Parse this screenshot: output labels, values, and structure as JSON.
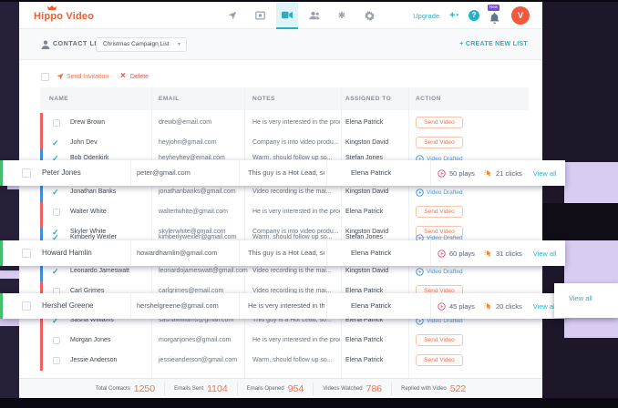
{
  "header": {
    "logo_text": "Hippo Video",
    "nav_icons": [
      "send-icon",
      "display-icon",
      "video-camera-icon",
      "contacts-icon",
      "integrations-icon",
      "settings-icon"
    ],
    "active_nav": "video-camera-icon",
    "upgrade_label": "Upgrade",
    "plus_label": "+",
    "help_glyph": "?",
    "bell_badge": "New",
    "avatar_initial": "V"
  },
  "subheader": {
    "contact_list_label": "CONTACT LIST",
    "selected_list": "Christmas Campaign List",
    "create_new_list_label": "+ CREATE NEW LIST"
  },
  "toolbar": {
    "send_invitation_label": "Send Invitation",
    "delete_label": "Delete"
  },
  "table": {
    "columns": [
      "NAME",
      "EMAIL",
      "NOTES",
      "ASSIGNED TO",
      "ACTION"
    ],
    "action_labels": {
      "send": "Send Video",
      "drafted": "Video Drafted"
    },
    "rows": [
      {
        "kind": "normal",
        "name": "Drew Brown",
        "email": "drewb@email.com",
        "notes": "He is very interested in the prod...",
        "assigned": "Elena Patrick",
        "action": "send",
        "checked": false,
        "accent": "red"
      },
      {
        "kind": "normal",
        "name": "John Dev",
        "email": "heyjohn@gmail.com",
        "notes": "Company is into video produ...",
        "assigned": "Kingston David",
        "action": "send",
        "checked": true,
        "accent": "red"
      },
      {
        "kind": "normal",
        "name": "Bob Odenkirk",
        "email": "heyheyhey@email.com",
        "notes": "Warm. should follow up so...",
        "assigned": "Stefan Jones",
        "action": "drafted",
        "checked": true,
        "accent": "blue"
      },
      {
        "kind": "overlay",
        "name": "Peter Jones",
        "email": "peter@gmail.com",
        "notes": "This guy is a Hot Lead, so...",
        "assigned": "Elena Patrick",
        "checked": false,
        "accent": "green",
        "plays": "50 plays",
        "clicks": "21 clicks",
        "view_all": "View all"
      },
      {
        "kind": "normal",
        "name": "Jonathan Banks",
        "email": "jonathanbanks@gmail.com",
        "notes": "Video recording is the mai...",
        "assigned": "Kingston David",
        "action": "drafted",
        "checked": true,
        "accent": "blue"
      },
      {
        "kind": "normal",
        "name": "Walter White",
        "email": "waltertwhite@gmail.com",
        "notes": "He is very interested in the prod...",
        "assigned": "Elena Patrick",
        "action": "send",
        "checked": false,
        "accent": "red"
      },
      {
        "kind": "normal",
        "name": "Skyler White",
        "email": "skylerwhite@gmail.com",
        "notes": "Company is into video produ...",
        "assigned": "Kingston David",
        "action": "send",
        "checked": true,
        "accent": "red"
      },
      {
        "kind": "normal",
        "name": "Kimberly Wexler",
        "email": "kimberlywexler@gmail.com",
        "notes": "Warm. should follow up so...",
        "assigned": "Stefan Jones",
        "action": "drafted",
        "checked": true,
        "accent": "blue"
      },
      {
        "kind": "overlay",
        "name": "Howard Hamlin",
        "email": "howardhamlin@gmail.com",
        "notes": "This guy is a Hot Lead, so...",
        "assigned": "Elena Patrick",
        "checked": false,
        "accent": "green",
        "plays": "60 plays",
        "clicks": "31 clicks",
        "view_all": "View all"
      },
      {
        "kind": "normal",
        "name": "Leonardo Jameswatt",
        "email": "leonardojameswatt@gmail.com",
        "notes": "Video recording is the mai...",
        "assigned": "Kingston David",
        "action": "drafted",
        "checked": true,
        "accent": "blue"
      },
      {
        "kind": "normal",
        "name": "Carl Grimes",
        "email": "carlgrimes@email.com",
        "notes": "Video recording is the mai...",
        "assigned": "Elena Patrick",
        "action": "send",
        "checked": false,
        "accent": "red"
      },
      {
        "kind": "overlay",
        "name": "Hershel Greene",
        "email": "hershelgreene@gmail.com",
        "notes": "He is very interested in the prod...",
        "assigned": "Elena Patrick",
        "checked": false,
        "accent": "green",
        "plays": "45 plays",
        "clicks": "20 clicks",
        "view_all": "View all"
      },
      {
        "kind": "normal",
        "name": "Sasha Williams",
        "email": "sashawilliams@gmail.com",
        "notes": "This guy is a Hot Lead, so...",
        "assigned": "Elena Patrick",
        "action": "drafted",
        "checked": true,
        "accent": "red"
      },
      {
        "kind": "normal",
        "name": "Morgan Jones",
        "email": "morganjones@gmail.com",
        "notes": "He is very interested in the prod...",
        "assigned": "Elena Patrick",
        "action": "send",
        "checked": false,
        "accent": "red"
      },
      {
        "kind": "normal",
        "name": "Jessie Anderson",
        "email": "jessieanderson@gmail.com",
        "notes": "Warm..should follow up so...",
        "assigned": "Elena Patrick",
        "action": "send",
        "checked": false,
        "accent": "red"
      }
    ]
  },
  "footer": {
    "stats": [
      {
        "label": "Total Contacts",
        "value": "1250"
      },
      {
        "label": "Emails Sent",
        "value": "1104"
      },
      {
        "label": "Emails Opened",
        "value": "954"
      },
      {
        "label": "Videos Watched",
        "value": "786"
      },
      {
        "label": "Replied with Video",
        "value": "522"
      }
    ]
  },
  "popout": {
    "view_all_label": "View all"
  },
  "colors": {
    "bg": "#262039",
    "bg_right": "#1d1729",
    "bg_band": "#110d17",
    "bg_black": "#0a0810",
    "lavender": "#d9ccf1",
    "window": "#ffffff",
    "orange": "#f3724e",
    "logo": "#f25b2a",
    "teal": "#2ab0c5",
    "teal_bg": "#e0f3f7",
    "drafted": "#4ba0e8",
    "red": "#f15f5f",
    "blue": "#418ed6",
    "green": "#43bf6d",
    "delete": "#e8534a",
    "plays": "#ee5b7d",
    "clicks": "#f6861f",
    "badge": "#7b4bdd",
    "avatar": "#f0593b",
    "thead_bg": "#f4f6f8",
    "subbar_bg": "#f8f9fb",
    "footer_bg": "#f7f8fa",
    "border": "#e9ecf0"
  }
}
